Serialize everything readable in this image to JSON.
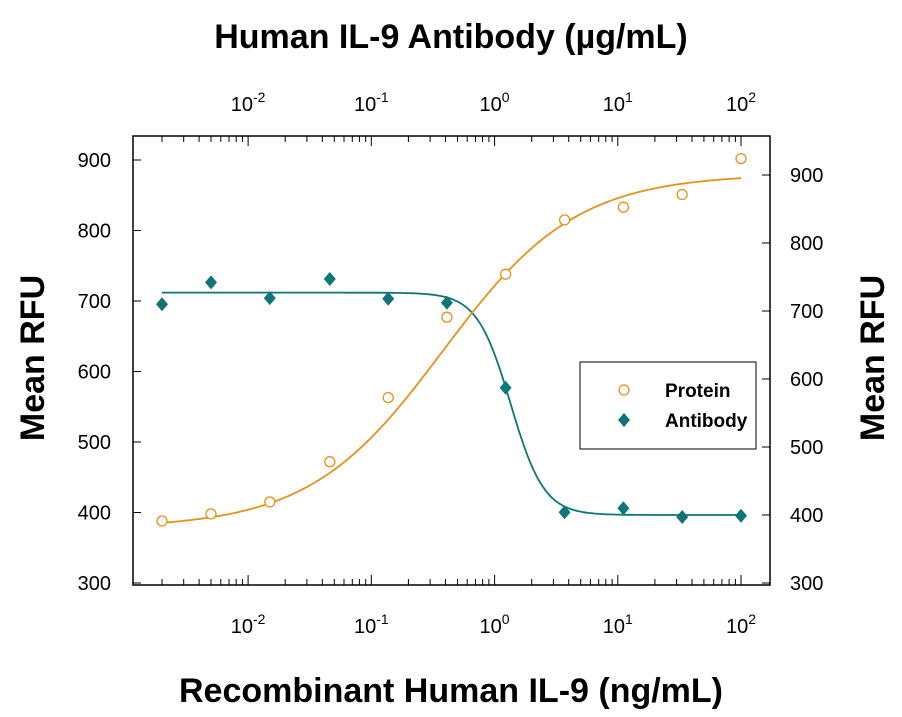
{
  "chart_data": {
    "type": "scatter",
    "title": "Human IL-9 Antibody (µg/mL)",
    "xlabel": "Recombinant Human IL-9 (ng/mL)",
    "ylabel_left": "Mean RFU",
    "ylabel_right": "Mean RFU",
    "x_scale": "log",
    "xlim": [
      0.002,
      100
    ],
    "ylim_left": [
      300,
      900
    ],
    "ylim_right": [
      300,
      920
    ],
    "x_ticks": [
      {
        "value": 0.01,
        "base": "10",
        "exp": "-2"
      },
      {
        "value": 0.1,
        "base": "10",
        "exp": "-1"
      },
      {
        "value": 1,
        "base": "10",
        "exp": "0"
      },
      {
        "value": 10,
        "base": "10",
        "exp": "1"
      },
      {
        "value": 100,
        "base": "10",
        "exp": "2"
      }
    ],
    "y_ticks_left": [
      300,
      400,
      500,
      600,
      700,
      800,
      900
    ],
    "y_ticks_right": [
      300,
      400,
      500,
      600,
      700,
      800,
      900
    ],
    "legend": {
      "position": "center-right"
    },
    "series": [
      {
        "name": "Protein",
        "color": "#e8901a",
        "marker": "open-circle",
        "axis": "left",
        "x": [
          0.002,
          0.005,
          0.015,
          0.046,
          0.137,
          0.41,
          1.23,
          3.7,
          11.1,
          33.3,
          100
        ],
        "y": [
          388,
          398,
          415,
          472,
          563,
          677,
          738,
          815,
          833,
          851,
          902
        ],
        "fit": {
          "bottom": 378,
          "top": 880,
          "ec50": 0.38,
          "hill": 0.8
        }
      },
      {
        "name": "Antibody",
        "color": "#0e7678",
        "marker": "filled-diamond",
        "axis": "right",
        "x": [
          0.002,
          0.005,
          0.015,
          0.046,
          0.137,
          0.41,
          1.23,
          3.7,
          11.1,
          33.3,
          100
        ],
        "y": [
          710,
          742,
          719,
          747,
          718,
          712,
          587,
          404,
          410,
          397,
          399
        ],
        "fit": {
          "top": 727,
          "bottom": 400,
          "ic50": 1.35,
          "hill": 3.2
        }
      }
    ]
  }
}
